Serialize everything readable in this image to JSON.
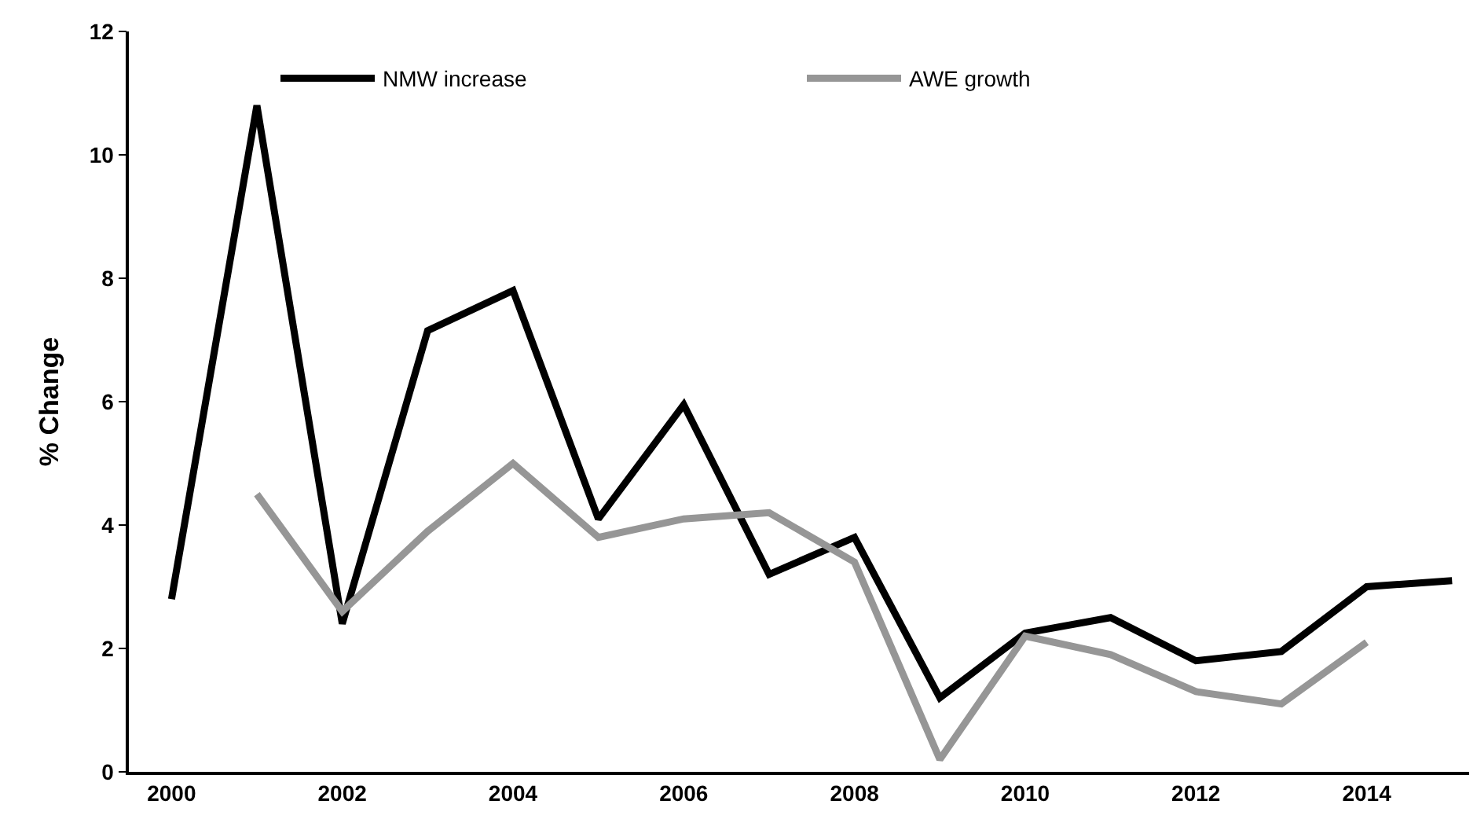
{
  "chart_data": {
    "type": "line",
    "ylabel": "% Change",
    "x": [
      2000,
      2001,
      2002,
      2003,
      2004,
      2005,
      2006,
      2007,
      2008,
      2009,
      2010,
      2011,
      2012,
      2013,
      2014,
      2015
    ],
    "series": [
      {
        "name": "NMW increase",
        "color": "#000000",
        "values": [
          2.8,
          10.8,
          2.4,
          7.15,
          7.8,
          4.1,
          5.95,
          3.2,
          3.8,
          1.2,
          2.25,
          2.5,
          1.8,
          1.95,
          3.0,
          3.1
        ]
      },
      {
        "name": "AWE growth",
        "color": "#969696",
        "values": [
          null,
          4.5,
          2.6,
          3.9,
          5.0,
          3.8,
          4.1,
          4.2,
          3.4,
          0.2,
          2.2,
          1.9,
          1.3,
          1.1,
          2.1,
          null
        ]
      }
    ],
    "xlim": [
      1999.5,
      2015.2
    ],
    "xticks": [
      2000,
      2002,
      2004,
      2006,
      2008,
      2010,
      2012,
      2014
    ],
    "ylim": [
      0,
      12
    ],
    "yticks": [
      0,
      2,
      4,
      6,
      8,
      10,
      12
    ],
    "legend": "top",
    "marker": "none",
    "line_style": "solid"
  }
}
